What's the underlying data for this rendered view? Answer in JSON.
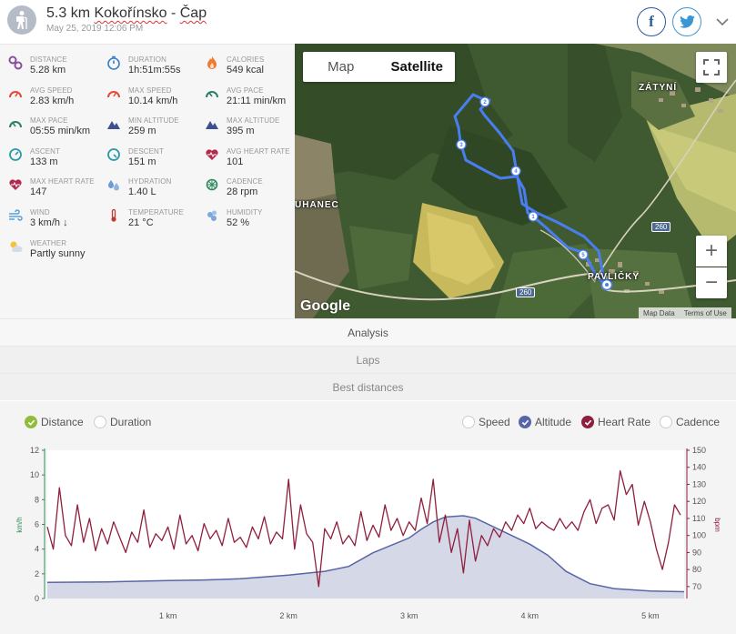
{
  "header": {
    "distance_prefix": "5.3 km ",
    "route_name_1": "Kokořínsko",
    "route_sep": " - ",
    "route_name_2": "Čap",
    "date": "May 25, 2019 12:06 PM",
    "facebook_label": "f"
  },
  "stats": [
    {
      "label": "Distance",
      "value": "5.28 km",
      "icon": "distance-icon"
    },
    {
      "label": "Duration",
      "value": "1h:51m:55s",
      "icon": "stopwatch-icon"
    },
    {
      "label": "Calories",
      "value": "549 kcal",
      "icon": "flame-icon"
    },
    {
      "label": "Avg speed",
      "value": "2.83 km/h",
      "icon": "speedometer-icon"
    },
    {
      "label": "Max speed",
      "value": "10.14 km/h",
      "icon": "speedometer-icon"
    },
    {
      "label": "Avg pace",
      "value": "21:11 min/km",
      "icon": "pace-gauge-icon"
    },
    {
      "label": "Max pace",
      "value": "05:55 min/km",
      "icon": "pace-gauge-icon"
    },
    {
      "label": "Min altitude",
      "value": "259 m",
      "icon": "mountain-icon"
    },
    {
      "label": "Max altitude",
      "value": "395 m",
      "icon": "mountain-icon"
    },
    {
      "label": "Ascent",
      "value": "133 m",
      "icon": "ascent-gauge-icon"
    },
    {
      "label": "Descent",
      "value": "151 m",
      "icon": "descent-gauge-icon"
    },
    {
      "label": "Avg heart rate",
      "value": "101",
      "icon": "heart-pulse-icon"
    },
    {
      "label": "Max heart rate",
      "value": "147",
      "icon": "heart-pulse-icon"
    },
    {
      "label": "Hydration",
      "value": "1.40 L",
      "icon": "water-drops-icon"
    },
    {
      "label": "Cadence",
      "value": "28 rpm",
      "icon": "cadence-icon"
    },
    {
      "label": "Wind",
      "value": "3 km/h ↓",
      "icon": "wind-icon"
    },
    {
      "label": "Temperature",
      "value": "21 °C",
      "icon": "thermometer-icon"
    },
    {
      "label": "Humidity",
      "value": "52 %",
      "icon": "humidity-icon"
    },
    {
      "label": "Weather",
      "value": "Partly sunny",
      "icon": "partly-sunny-icon"
    }
  ],
  "map": {
    "tab_map": "Map",
    "tab_satellite": "Satellite",
    "zoom_in": "+",
    "zoom_out": "−",
    "place_1": "ZÁTYNÍ",
    "place_2": "UHANEC",
    "place_3": "PAVLIČKY",
    "road_1": "260",
    "road_2": "260",
    "google": "Google",
    "footer_data": "Map Data",
    "footer_terms": "Terms of Use",
    "markers": [
      "2",
      "3",
      "4",
      "1",
      "5"
    ]
  },
  "tabs": {
    "analysis": "Analysis",
    "laps": "Laps",
    "best_distances": "Best distances"
  },
  "chart_controls": {
    "distance": "Distance",
    "duration": "Duration",
    "speed": "Speed",
    "altitude": "Altitude",
    "heart_rate": "Heart Rate",
    "cadence": "Cadence"
  },
  "colors": {
    "heart_rate": "#8f1f3c",
    "altitude_line": "#5866a8",
    "altitude_fill": "#d5d8e7",
    "speed_axis": "#2e8b57",
    "route": "#4a7ef0"
  },
  "chart_data": {
    "type": "line",
    "x_unit": "km",
    "x_ticks": [
      "1 km",
      "2 km",
      "3 km",
      "4 km",
      "5 km"
    ],
    "x_range": [
      0,
      5.28
    ],
    "left_axis": {
      "label": "km/h",
      "ticks": [
        0,
        2,
        4,
        6,
        8,
        10,
        12
      ],
      "range": [
        0,
        12
      ]
    },
    "right_axis": {
      "label": "bpm",
      "ticks": [
        70,
        80,
        90,
        100,
        110,
        120,
        130,
        140,
        150
      ],
      "range": [
        63,
        150
      ]
    },
    "series": [
      {
        "name": "Altitude",
        "axis": "left",
        "x": [
          0,
          0.5,
          1,
          1.3,
          1.6,
          2.0,
          2.3,
          2.5,
          2.7,
          2.85,
          3.0,
          3.1,
          3.2,
          3.3,
          3.45,
          3.55,
          3.7,
          3.85,
          4.0,
          4.15,
          4.3,
          4.5,
          4.7,
          5.0,
          5.28
        ],
        "y": [
          1.3,
          1.35,
          1.45,
          1.5,
          1.6,
          1.9,
          2.2,
          2.6,
          3.7,
          4.3,
          4.9,
          5.6,
          6.2,
          6.6,
          6.7,
          6.5,
          5.8,
          5.1,
          4.4,
          3.5,
          2.2,
          1.2,
          0.8,
          0.6,
          0.55
        ]
      },
      {
        "name": "Heart Rate",
        "axis": "right",
        "x": [
          0,
          0.05,
          0.1,
          0.15,
          0.2,
          0.25,
          0.3,
          0.35,
          0.4,
          0.45,
          0.5,
          0.55,
          0.6,
          0.65,
          0.7,
          0.75,
          0.8,
          0.85,
          0.9,
          0.95,
          1.0,
          1.05,
          1.1,
          1.15,
          1.2,
          1.25,
          1.3,
          1.35,
          1.4,
          1.45,
          1.5,
          1.55,
          1.6,
          1.65,
          1.7,
          1.75,
          1.8,
          1.85,
          1.9,
          1.95,
          2.0,
          2.05,
          2.1,
          2.15,
          2.2,
          2.25,
          2.3,
          2.35,
          2.4,
          2.45,
          2.5,
          2.55,
          2.6,
          2.65,
          2.7,
          2.75,
          2.8,
          2.85,
          2.9,
          2.95,
          3.0,
          3.05,
          3.1,
          3.15,
          3.2,
          3.25,
          3.3,
          3.35,
          3.4,
          3.45,
          3.5,
          3.55,
          3.6,
          3.65,
          3.7,
          3.75,
          3.8,
          3.85,
          3.9,
          3.95,
          4.0,
          4.05,
          4.1,
          4.15,
          4.2,
          4.25,
          4.3,
          4.35,
          4.4,
          4.45,
          4.5,
          4.55,
          4.6,
          4.65,
          4.7,
          4.75,
          4.8,
          4.85,
          4.9,
          4.95,
          5.0,
          5.05,
          5.1,
          5.15,
          5.2,
          5.25
        ],
        "y": [
          105,
          92,
          128,
          100,
          94,
          118,
          96,
          110,
          91,
          104,
          95,
          108,
          99,
          90,
          102,
          96,
          115,
          93,
          101,
          97,
          105,
          92,
          112,
          95,
          100,
          91,
          107,
          98,
          103,
          94,
          110,
          96,
          99,
          93,
          105,
          98,
          111,
          95,
          102,
          98,
          133,
          92,
          118,
          101,
          96,
          70,
          104,
          98,
          108,
          95,
          100,
          94,
          114,
          97,
          106,
          99,
          118,
          103,
          110,
          100,
          108,
          103,
          122,
          107,
          133,
          96,
          112,
          90,
          104,
          78,
          109,
          85,
          100,
          94,
          104,
          99,
          108,
          103,
          112,
          107,
          116,
          104,
          108,
          105,
          103,
          110,
          104,
          108,
          103,
          114,
          121,
          107,
          116,
          118,
          109,
          138,
          124,
          130,
          106,
          120,
          108,
          92,
          80,
          96,
          118,
          112
        ]
      }
    ]
  }
}
